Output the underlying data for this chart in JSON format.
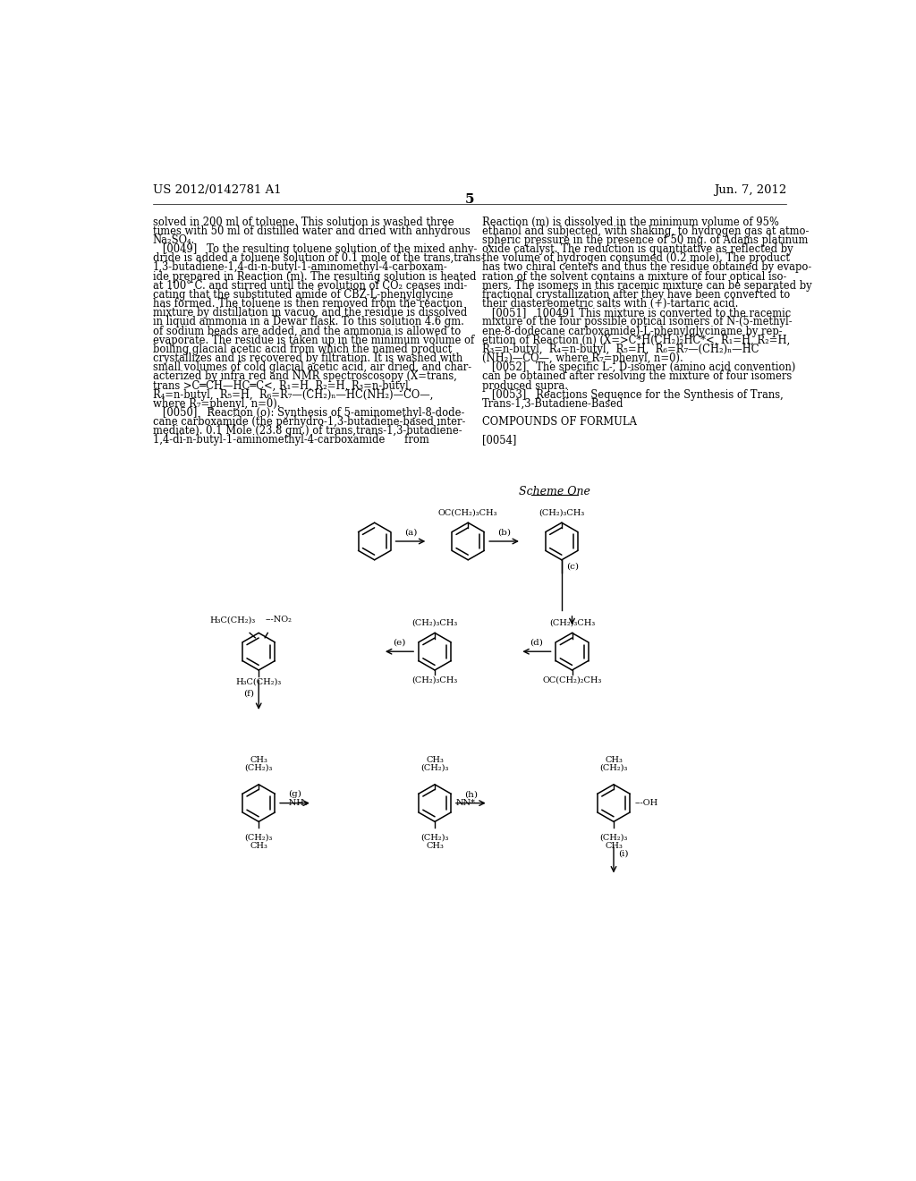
{
  "page_header_left": "US 2012/0142781 A1",
  "page_header_right": "Jun. 7, 2012",
  "page_number": "5",
  "background_color": "#ffffff",
  "text_color": "#000000",
  "left_column_text": [
    "solved in 200 ml of toluene. This solution is washed three",
    "times with 50 ml of distilled water and dried with anhydrous",
    "Na₂SO₄.",
    "   [0049]   To the resulting toluene solution of the mixed anhy-",
    "dride is added a toluene solution of 0.1 mole of the trans,trans-",
    "1,3-butadiene-1,4-di-n-butyl-1-aminomethyl-4-carboxam-",
    "ide prepared in Reaction (m). The resulting solution is heated",
    "at 100° C. and stirred until the evolution of CO₂ ceases indi-",
    "cating that the substituted amide of CBZ-L-phenylglycine",
    "has formed. The toluene is then removed from the reaction",
    "mixture by distillation in vacuo, and the residue is dissolved",
    "in liquid ammonia in a Dewar flask. To this solution 4.6 gm.",
    "of sodium beads are added, and the ammonia is allowed to",
    "evaporate. The residue is taken up in the minimum volume of",
    "boiling glacial acetic acid from which the named product",
    "crystallizes and is recovered by filtration. It is washed with",
    "small volumes of cold glacial acetic acid, air dried, and char-",
    "acterized by infra red and NMR spectroscosopy (X=trans,",
    "trans >C═CH—HC═C<, R₁=H, R₂=H, R₃=n-butyl,",
    "R₄=n-butyl,  R₅=H,  R₆=R₇—(CH₂)ₙ—HC(NH₂)—CO—,",
    "where R₇=phenyl, n=0).",
    "   [0050]   Reaction (o): Synthesis of 5-aminomethyl-8-dode-",
    "cane carboxamide (the perhydro-1,3-butadiene-based inter-",
    "mediate). 0.1 Mole (23.8 gm.) of trans,trans-1,3-butadiene-",
    "1,4-di-n-butyl-1-aminomethyl-4-carboxamide      from"
  ],
  "right_column_text": [
    "Reaction (m) is dissolved in the minimum volume of 95%",
    "ethanol and subjected, with shaking, to hydrogen gas at atmo-",
    "spheric pressure in the presence of 50 mg. of Adams platinum",
    "oxide catalyst. The reduction is quantitative as reflected by",
    "the volume of hydrogen consumed (0.2 mole). The product",
    "has two chiral centers and thus the residue obtained by evapo-",
    "ration of the solvent contains a mixture of four optical iso-",
    "mers. The isomers in this racemic mixture can be separated by",
    "fractional crystallization after they have been converted to",
    "their diastereometric salts with (+)-tartaric acid.",
    "   [0051]   100491 This mixture is converted to the racemic",
    "mixture of the four possible optical isomers of N-(5-methyl-",
    "ene-8-dodecane carboxamide)-L-phenylglyciname by rep-",
    "etition of Reaction (n) (X=>C*H(CH₂)₂HC*<, R₁=H, R₂=H,",
    "R₃=n-butyl,  R₄=n-butyl,  R₅=H,  R₆=R₇—(CH₂)ₙ—HC",
    "(NH₂)—CO—, where R₇=phenyl, n=0).",
    "   [0052]   The specific L-, D-isomer (amino acid convention)",
    "can be obtained after resolving the mixture of four isomers",
    "produced supra.",
    "   [0053]   Reactions Sequence for the Synthesis of Trans,",
    "Trans-1,3-Butadiene-Based",
    "",
    "COMPOUNDS OF FORMULA",
    "",
    "[0054]"
  ],
  "scheme_label": "Scheme One",
  "figsize": [
    10.24,
    13.2
  ],
  "dpi": 100
}
